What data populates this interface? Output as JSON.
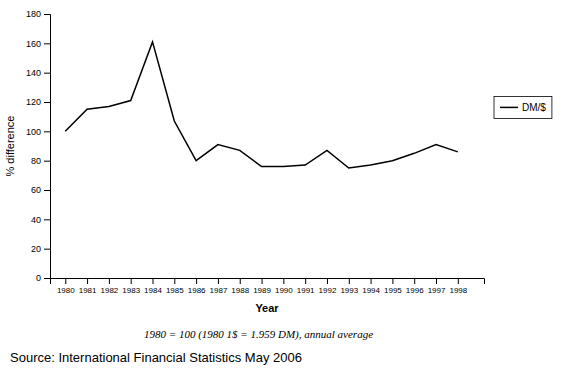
{
  "chart_data": {
    "type": "line",
    "x_label": "Year",
    "y_label": "% difference",
    "x": [
      1980,
      1981,
      1982,
      1983,
      1984,
      1985,
      1986,
      1987,
      1988,
      1989,
      1990,
      1991,
      1992,
      1993,
      1994,
      1995,
      1996,
      1997,
      1998
    ],
    "series": [
      {
        "name": "DM/$",
        "color": "#000000",
        "values": [
          100,
          115,
          117,
          121,
          161,
          107,
          80,
          91,
          87,
          76,
          76,
          77,
          87,
          75,
          77,
          80,
          85,
          91,
          86
        ]
      }
    ],
    "xlim": [
      1979.3,
      1999.2
    ],
    "xticks": [
      1980,
      1981,
      1982,
      1983,
      1984,
      1985,
      1986,
      1987,
      1988,
      1989,
      1990,
      1991,
      1992,
      1993,
      1994,
      1995,
      1996,
      1997,
      1998
    ],
    "ylim": [
      0,
      180
    ],
    "yticks": [
      0,
      20,
      40,
      60,
      80,
      100,
      120,
      140,
      160,
      180
    ],
    "grid": false,
    "legend": "right",
    "annotations": [
      "1980 = 100 (1980 1$ = 1.959 DM), annual average",
      "Source: International Financial Statistics May 2006"
    ]
  }
}
